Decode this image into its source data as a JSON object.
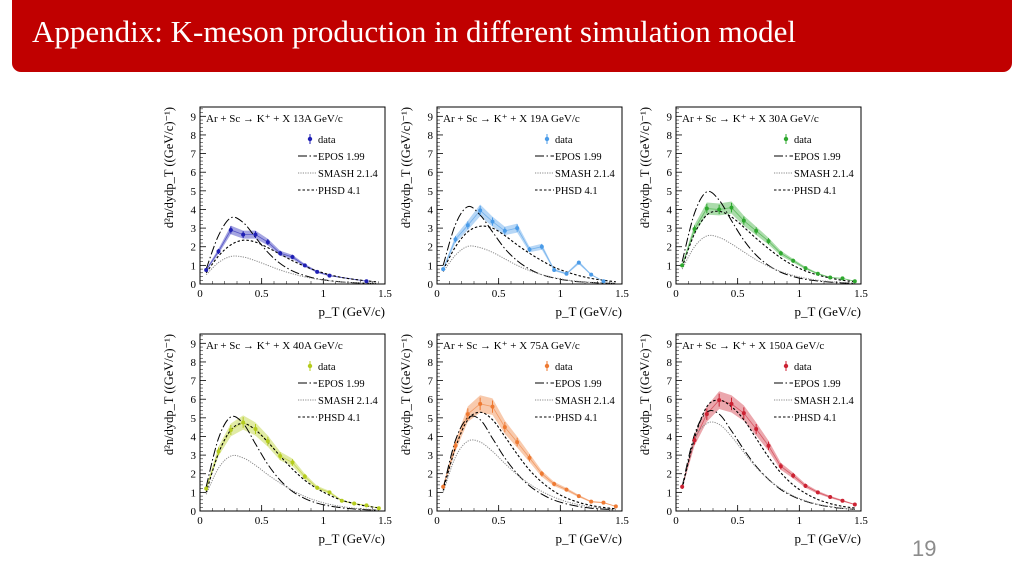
{
  "header": {
    "title": "Appendix: K-meson production in different simulation model"
  },
  "slide": {
    "page_number": "19"
  },
  "axes": {
    "ylabel": "d²n/dydp_T ((GeV/c)⁻¹)",
    "xlabel": "p_T (GeV/c)",
    "xlim": [
      0,
      1.5
    ],
    "ylim": [
      0,
      9.5
    ],
    "xticks": [
      0,
      0.5,
      1,
      1.5
    ],
    "xtick_labels": [
      "0",
      "0.5",
      "1",
      "1.5"
    ],
    "yticks": [
      0,
      1,
      2,
      3,
      4,
      5,
      6,
      7,
      8,
      9
    ],
    "ytick_labels": [
      "0",
      "1",
      "2",
      "3",
      "4",
      "5",
      "6",
      "7",
      "8",
      "9"
    ]
  },
  "legend": {
    "placement": "top-right",
    "entries": [
      "data",
      "EPOS 1.99",
      "SMASH 2.1.4",
      "PHSD 4.1"
    ]
  },
  "model_x": [
    0.05,
    0.15,
    0.25,
    0.35,
    0.45,
    0.55,
    0.65,
    0.75,
    0.85,
    0.95,
    1.05,
    1.15,
    1.25,
    1.35,
    1.45
  ],
  "chart_data": [
    {
      "type": "line",
      "title": "Ar + Sc → K⁺ + X   13A GeV/c",
      "color": "#1f1fb4",
      "data_x": [
        0.05,
        0.15,
        0.25,
        0.35,
        0.45,
        0.55,
        0.65,
        0.75,
        0.85,
        0.95,
        1.05,
        1.35
      ],
      "data_y": [
        0.75,
        1.75,
        2.9,
        2.65,
        2.65,
        2.25,
        1.65,
        1.45,
        1.0,
        0.65,
        0.45,
        0.15
      ],
      "series": [
        {
          "name": "EPOS 1.99",
          "values": [
            0.8,
            2.6,
            3.55,
            3.3,
            2.5,
            1.7,
            1.1,
            0.7,
            0.45,
            0.28,
            0.18,
            0.11,
            0.07,
            0.04,
            0.02
          ]
        },
        {
          "name": "SMASH 2.1.4",
          "values": [
            0.5,
            1.15,
            1.48,
            1.45,
            1.25,
            1.0,
            0.75,
            0.55,
            0.38,
            0.26,
            0.17,
            0.11,
            0.07,
            0.05,
            0.03
          ]
        },
        {
          "name": "PHSD 4.1",
          "values": [
            0.6,
            1.5,
            2.1,
            2.35,
            2.25,
            1.95,
            1.6,
            1.25,
            0.95,
            0.7,
            0.5,
            0.35,
            0.25,
            0.17,
            0.1
          ]
        }
      ]
    },
    {
      "type": "line",
      "title": "Ar + Sc → K⁺ + X   19A GeV/c",
      "color": "#4a9be8",
      "data_x": [
        0.05,
        0.15,
        0.25,
        0.35,
        0.45,
        0.55,
        0.65,
        0.75,
        0.85,
        0.95,
        1.05,
        1.15,
        1.25,
        1.35
      ],
      "data_y": [
        0.8,
        2.4,
        3.15,
        3.95,
        3.35,
        2.85,
        3.0,
        1.85,
        2.0,
        0.75,
        0.55,
        1.15,
        0.5,
        0.15
      ],
      "series": [
        {
          "name": "EPOS 1.99",
          "values": [
            1.0,
            3.2,
            4.15,
            3.7,
            2.8,
            1.9,
            1.25,
            0.8,
            0.5,
            0.32,
            0.2,
            0.12,
            0.08,
            0.05,
            0.03
          ]
        },
        {
          "name": "SMASH 2.1.4",
          "values": [
            0.65,
            1.55,
            2.02,
            1.95,
            1.7,
            1.35,
            1.0,
            0.72,
            0.5,
            0.34,
            0.22,
            0.14,
            0.09,
            0.06,
            0.04
          ]
        },
        {
          "name": "PHSD 4.1",
          "values": [
            0.75,
            2.0,
            2.8,
            3.1,
            3.0,
            2.6,
            2.1,
            1.65,
            1.25,
            0.9,
            0.65,
            0.45,
            0.3,
            0.2,
            0.12
          ]
        }
      ]
    },
    {
      "type": "line",
      "title": "Ar + Sc → K⁺ + X   30A GeV/c",
      "color": "#2ea82e",
      "data_x": [
        0.05,
        0.15,
        0.25,
        0.35,
        0.45,
        0.55,
        0.65,
        0.75,
        0.85,
        0.95,
        1.05,
        1.15,
        1.25,
        1.35,
        1.45
      ],
      "data_y": [
        1.0,
        2.95,
        4.05,
        4.0,
        4.1,
        3.4,
        2.85,
        2.3,
        1.65,
        1.25,
        0.85,
        0.55,
        0.35,
        0.3,
        0.15
      ],
      "series": [
        {
          "name": "EPOS 1.99",
          "values": [
            1.2,
            3.8,
            4.95,
            4.5,
            3.4,
            2.35,
            1.55,
            1.0,
            0.63,
            0.4,
            0.25,
            0.16,
            0.1,
            0.06,
            0.04
          ]
        },
        {
          "name": "SMASH 2.1.4",
          "values": [
            0.8,
            2.0,
            2.58,
            2.5,
            2.15,
            1.72,
            1.3,
            0.95,
            0.67,
            0.46,
            0.31,
            0.2,
            0.13,
            0.08,
            0.05
          ]
        },
        {
          "name": "PHSD 4.1",
          "values": [
            0.9,
            2.7,
            3.7,
            3.9,
            3.6,
            3.05,
            2.45,
            1.9,
            1.4,
            1.0,
            0.7,
            0.48,
            0.32,
            0.2,
            0.13
          ]
        }
      ]
    },
    {
      "type": "line",
      "title": "Ar + Sc → K⁺ + X   40A GeV/c",
      "color": "#b5cc1e",
      "data_x": [
        0.05,
        0.15,
        0.25,
        0.35,
        0.45,
        0.55,
        0.65,
        0.75,
        0.85,
        0.95,
        1.05,
        1.15,
        1.25,
        1.35,
        1.45
      ],
      "data_y": [
        1.2,
        3.2,
        4.35,
        4.75,
        4.4,
        3.75,
        2.95,
        2.6,
        1.85,
        1.25,
        1.0,
        0.55,
        0.4,
        0.3,
        0.15
      ],
      "series": [
        {
          "name": "EPOS 1.99",
          "values": [
            1.3,
            3.9,
            5.05,
            4.7,
            3.6,
            2.5,
            1.65,
            1.05,
            0.67,
            0.42,
            0.27,
            0.17,
            0.11,
            0.07,
            0.04
          ]
        },
        {
          "name": "SMASH 2.1.4",
          "values": [
            0.9,
            2.3,
            2.95,
            2.85,
            2.45,
            1.95,
            1.5,
            1.1,
            0.78,
            0.54,
            0.36,
            0.24,
            0.15,
            0.1,
            0.06
          ]
        },
        {
          "name": "PHSD 4.1",
          "values": [
            1.0,
            3.1,
            4.35,
            4.7,
            4.35,
            3.7,
            2.95,
            2.25,
            1.65,
            1.2,
            0.85,
            0.58,
            0.4,
            0.26,
            0.17
          ]
        }
      ]
    },
    {
      "type": "line",
      "title": "Ar + Sc → K⁺ + X   75A GeV/c",
      "color": "#ee7a33",
      "data_x": [
        0.05,
        0.15,
        0.25,
        0.35,
        0.45,
        0.55,
        0.65,
        0.75,
        0.85,
        0.95,
        1.05,
        1.15,
        1.25,
        1.35,
        1.45
      ],
      "data_y": [
        1.3,
        3.5,
        5.2,
        5.75,
        5.6,
        4.5,
        3.7,
        2.85,
        2.0,
        1.45,
        1.15,
        0.8,
        0.5,
        0.45,
        0.25
      ],
      "series": [
        {
          "name": "EPOS 1.99",
          "values": [
            1.2,
            3.8,
            5.0,
            4.9,
            3.9,
            2.85,
            2.0,
            1.35,
            0.9,
            0.58,
            0.38,
            0.24,
            0.15,
            0.1,
            0.06
          ]
        },
        {
          "name": "SMASH 2.1.4",
          "values": [
            1.0,
            2.9,
            3.75,
            3.7,
            3.2,
            2.55,
            1.95,
            1.45,
            1.05,
            0.74,
            0.5,
            0.34,
            0.22,
            0.14,
            0.09
          ]
        },
        {
          "name": "PHSD 4.1",
          "values": [
            1.1,
            3.4,
            4.9,
            5.3,
            4.9,
            4.0,
            3.05,
            2.2,
            1.55,
            1.05,
            0.7,
            0.46,
            0.3,
            0.19,
            0.12
          ]
        }
      ]
    },
    {
      "type": "line",
      "title": "Ar + Sc → K⁺ + X   150A GeV/c",
      "color": "#cc2233",
      "data_x": [
        0.05,
        0.15,
        0.25,
        0.35,
        0.45,
        0.55,
        0.65,
        0.75,
        0.85,
        0.95,
        1.05,
        1.15,
        1.25,
        1.35,
        1.45
      ],
      "data_y": [
        1.3,
        3.8,
        5.2,
        5.95,
        5.75,
        5.25,
        4.4,
        3.5,
        2.4,
        1.9,
        1.35,
        1.0,
        0.75,
        0.55,
        0.35
      ],
      "series": [
        {
          "name": "EPOS 1.99",
          "values": [
            1.3,
            4.1,
            5.3,
            5.2,
            4.3,
            3.3,
            2.4,
            1.7,
            1.15,
            0.78,
            0.52,
            0.34,
            0.22,
            0.14,
            0.09
          ]
        },
        {
          "name": "SMASH 2.1.4",
          "values": [
            1.2,
            3.8,
            4.7,
            4.65,
            4.0,
            3.15,
            2.35,
            1.7,
            1.2,
            0.82,
            0.55,
            0.36,
            0.24,
            0.15,
            0.1
          ]
        },
        {
          "name": "PHSD 4.1",
          "values": [
            1.2,
            3.9,
            5.6,
            5.95,
            5.6,
            4.9,
            3.9,
            2.9,
            2.05,
            1.4,
            0.95,
            0.62,
            0.4,
            0.25,
            0.16
          ]
        }
      ]
    }
  ]
}
